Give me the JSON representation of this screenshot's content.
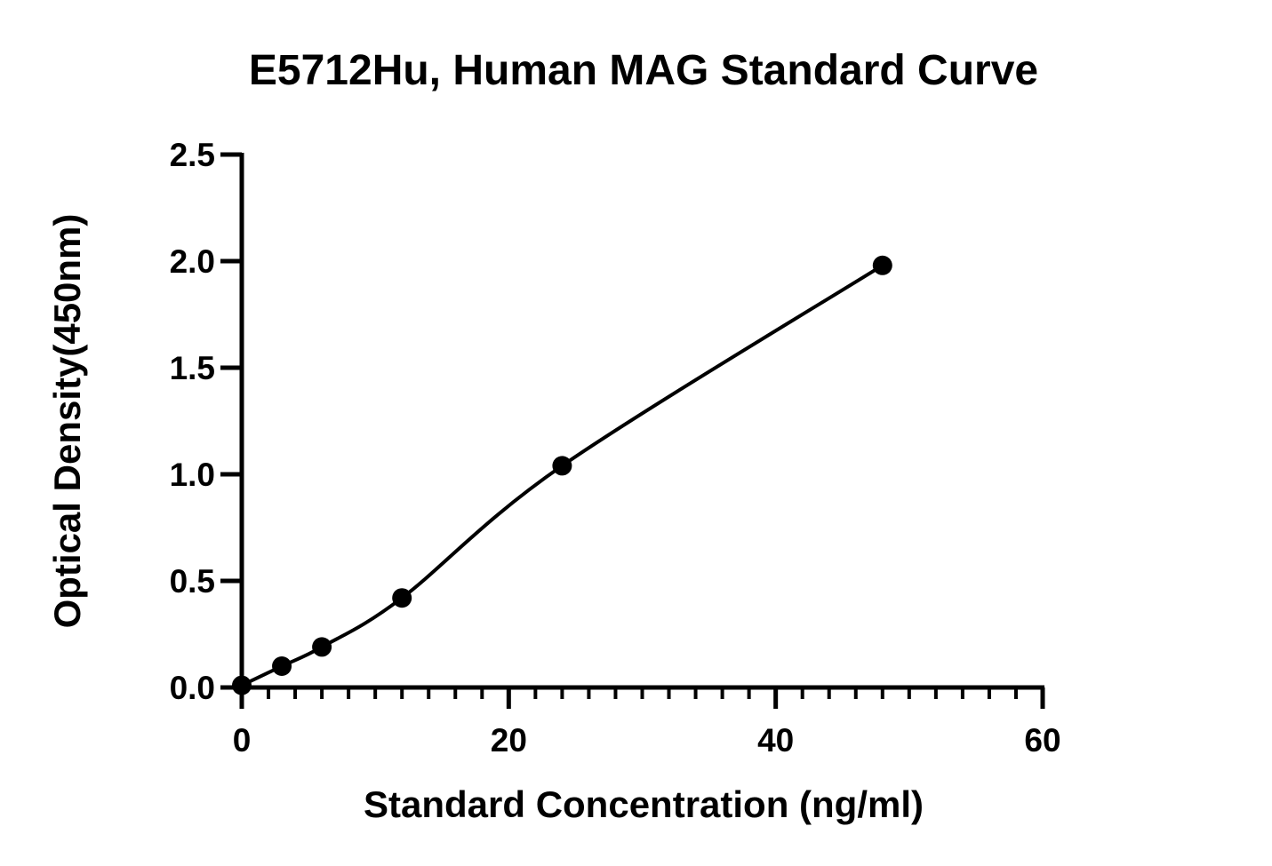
{
  "chart_data": {
    "type": "scatter",
    "title": "E5712Hu, Human MAG Standard Curve",
    "xlabel": "Standard Concentration (ng/ml)",
    "ylabel": "Optical Density(450nm)",
    "xlim": [
      0,
      60
    ],
    "ylim": [
      0,
      2.5
    ],
    "x_ticks": [
      0,
      20,
      40,
      60
    ],
    "x_tick_labels": [
      "0",
      "20",
      "40",
      "60"
    ],
    "x_minor_step": 2,
    "y_ticks": [
      0,
      0.5,
      1.0,
      1.5,
      2.0,
      2.5
    ],
    "y_tick_labels": [
      "0.0",
      "0.5",
      "1.0",
      "1.5",
      "2.0",
      "2.5"
    ],
    "grid": false,
    "series": [
      {
        "x": [
          0,
          3,
          6,
          12,
          24,
          48
        ],
        "y": [
          0.01,
          0.1,
          0.19,
          0.42,
          1.04,
          1.98
        ],
        "marker": "circle",
        "color": "#000000",
        "fit": "smooth curve"
      }
    ]
  }
}
